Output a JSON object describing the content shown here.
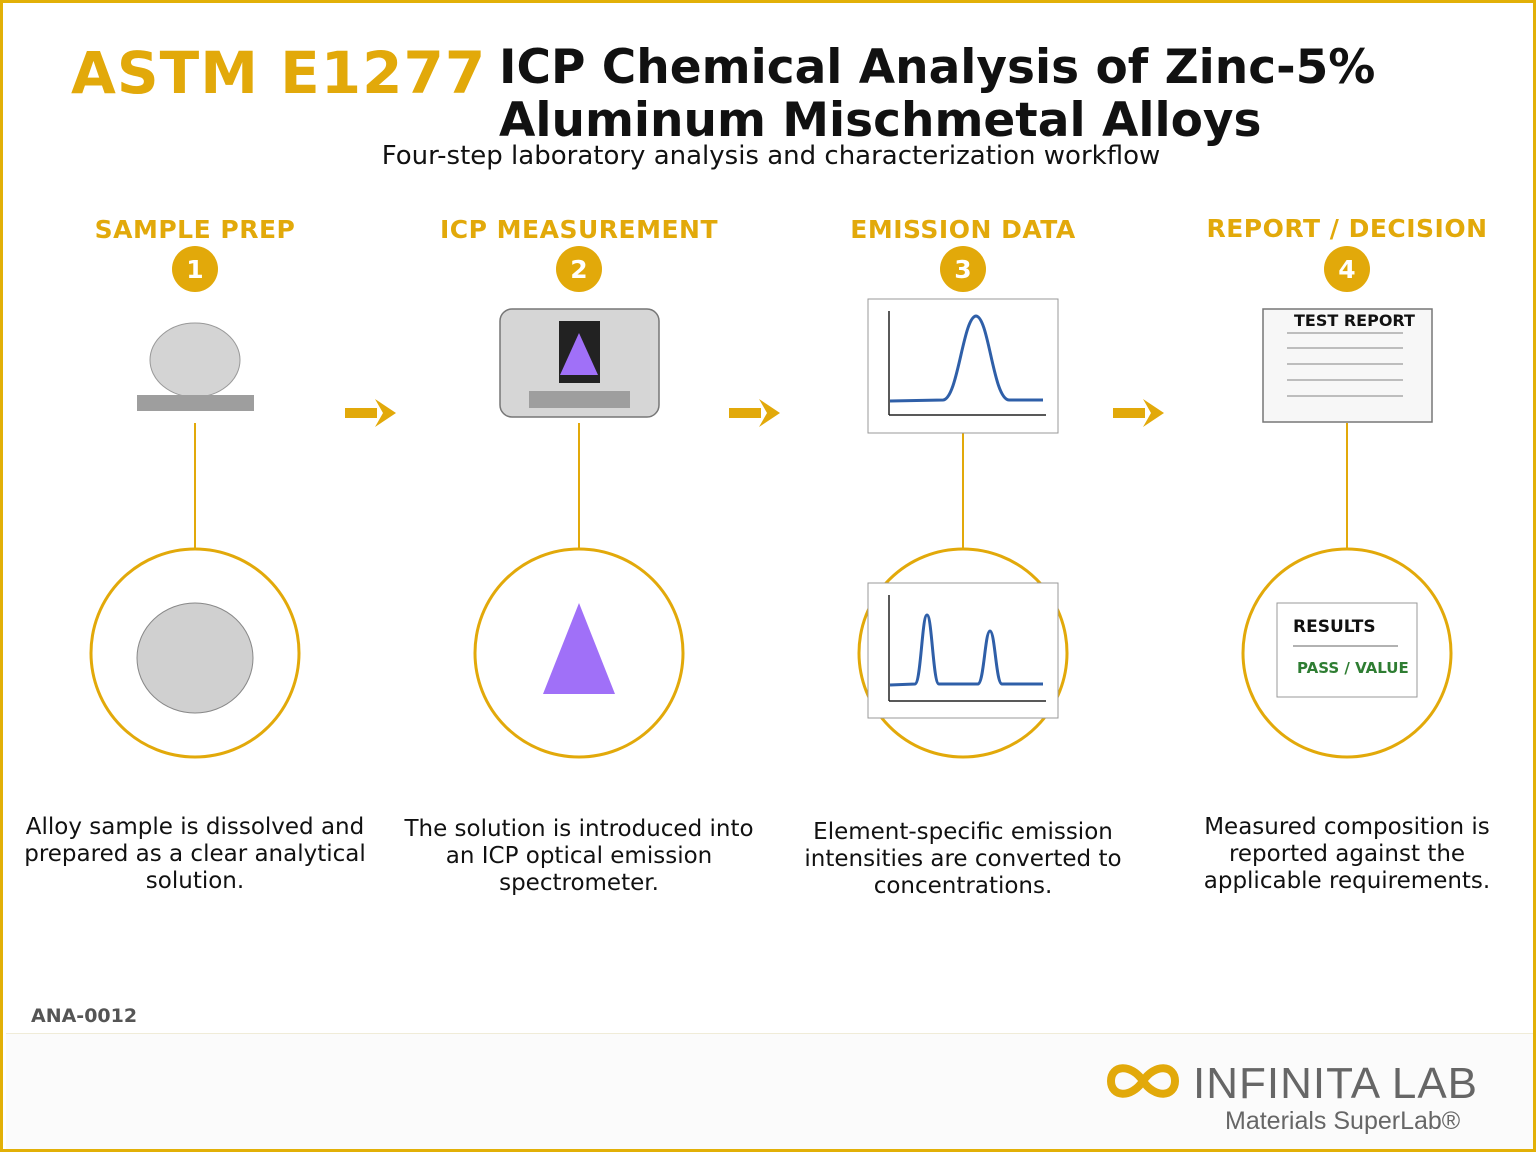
{
  "header": {
    "code": "ASTM E1277",
    "title": "ICP Chemical Analysis of Zinc-5% Aluminum Mischmetal Alloys",
    "subtitle": "Four-step laboratory analysis and characterization workflow"
  },
  "steps": [
    {
      "number": "1",
      "title": "SAMPLE PREP",
      "description": "Alloy sample is dissolved and prepared as a clear analytical solution."
    },
    {
      "number": "2",
      "title": "ICP MEASUREMENT",
      "description": "The solution is introduced into an ICP optical emission spectrometer."
    },
    {
      "number": "3",
      "title": "EMISSION DATA",
      "description": "Element-specific emission intensities are converted to concentrations."
    },
    {
      "number": "4",
      "title": "REPORT / DECISION",
      "description": "Measured composition is reported against the applicable requirements."
    }
  ],
  "report_card": {
    "title": "TEST REPORT"
  },
  "results_card": {
    "title": "RESULTS",
    "status": "PASS / VALUE"
  },
  "footer": {
    "doc_code": "ANA-0012",
    "brand": "INFINITA LAB",
    "tagline": "Materials SuperLab®"
  },
  "colors": {
    "accent": "#e2a90a",
    "ink": "#111111",
    "chart_line": "#2f5fa8",
    "plasma": "#a070f8",
    "pass": "#2e7d32"
  },
  "icons": [
    "sample-disc-icon",
    "spectrometer-icon",
    "spectrum-chart-icon",
    "test-report-icon",
    "arrow-right-icon",
    "infinity-logo-icon"
  ]
}
